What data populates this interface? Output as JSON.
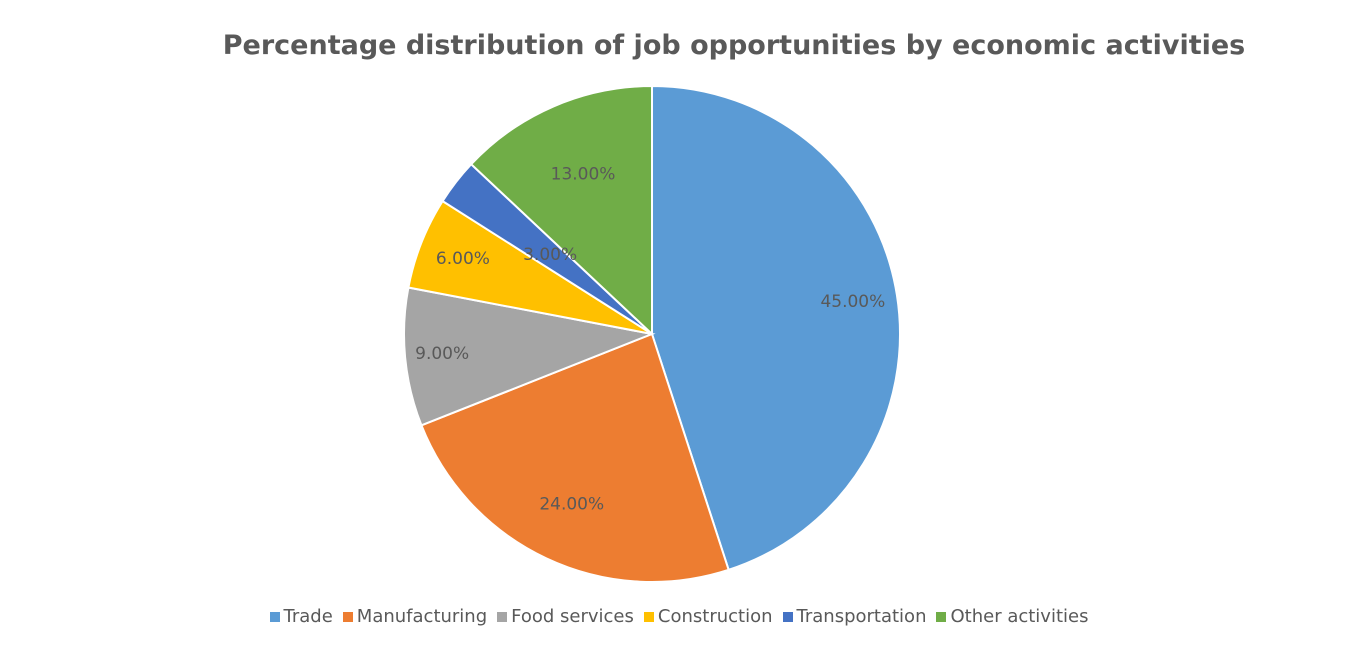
{
  "chart_data": {
    "type": "pie",
    "title": "Percentage distribution of job opportunities by economic activities",
    "categories": [
      "Trade",
      "Manufacturing",
      "Food services",
      "Construction",
      "Transportation",
      "Other activities"
    ],
    "values": [
      45,
      24,
      9,
      6,
      3,
      13
    ],
    "labels": [
      "45.00%",
      "24.00%",
      "9.00%",
      "6.00%",
      "3.00%",
      "13.00%"
    ],
    "colors": [
      "#5B9BD5",
      "#ED7D31",
      "#A5A5A5",
      "#FFC000",
      "#4472C4",
      "#70AD47"
    ],
    "legend_position": "bottom",
    "start_angle": "top, clockwise"
  }
}
